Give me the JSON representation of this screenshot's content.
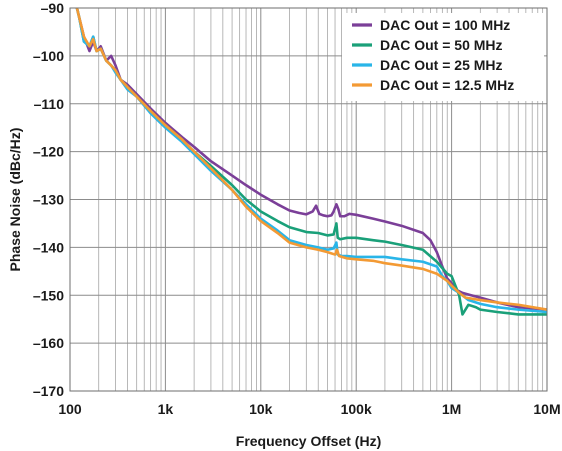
{
  "chart_data": {
    "type": "line",
    "xscale": "log",
    "xlabel": "Frequency Offset (Hz)",
    "ylabel": "Phase Noise (dBc/Hz)",
    "xlim": [
      100,
      10000000
    ],
    "ylim": [
      -170,
      -90
    ],
    "grid": true,
    "legend_position": "top-right",
    "x_tick_values": [
      100,
      1000,
      10000,
      100000,
      1000000,
      10000000
    ],
    "x_tick_labels": [
      "100",
      "1k",
      "10k",
      "100k",
      "1M",
      "10M"
    ],
    "y_tick_values": [
      -90,
      -100,
      -110,
      -120,
      -130,
      -140,
      -150,
      -160,
      -170
    ],
    "y_tick_labels": [
      "–90",
      "–100",
      "–110",
      "–120",
      "–130",
      "–140",
      "–150",
      "–160",
      "–170"
    ],
    "series": [
      {
        "name": "DAC Out = 100 MHz",
        "color": "#7B3F98",
        "points": [
          [
            100,
            -85
          ],
          [
            115,
            -89
          ],
          [
            125,
            -92
          ],
          [
            140,
            -96
          ],
          [
            160,
            -99
          ],
          [
            175,
            -97
          ],
          [
            190,
            -99
          ],
          [
            210,
            -98
          ],
          [
            240,
            -101
          ],
          [
            270,
            -100
          ],
          [
            300,
            -102
          ],
          [
            340,
            -105
          ],
          [
            400,
            -106
          ],
          [
            500,
            -108
          ],
          [
            700,
            -111
          ],
          [
            1000,
            -114
          ],
          [
            1500,
            -117
          ],
          [
            2000,
            -119
          ],
          [
            3000,
            -122
          ],
          [
            5000,
            -125
          ],
          [
            7000,
            -127
          ],
          [
            10000,
            -129
          ],
          [
            15000,
            -131
          ],
          [
            20000,
            -132.3
          ],
          [
            25000,
            -132.8
          ],
          [
            30000,
            -133.1
          ],
          [
            35000,
            -132.5
          ],
          [
            38000,
            -131.3
          ],
          [
            41000,
            -133
          ],
          [
            45000,
            -133.3
          ],
          [
            50000,
            -133.5
          ],
          [
            55000,
            -133.3
          ],
          [
            58000,
            -132.5
          ],
          [
            62000,
            -131
          ],
          [
            65000,
            -132
          ],
          [
            68000,
            -133.5
          ],
          [
            75000,
            -133.5
          ],
          [
            85000,
            -133
          ],
          [
            100000,
            -133.2
          ],
          [
            150000,
            -134
          ],
          [
            200000,
            -134.6
          ],
          [
            300000,
            -135.5
          ],
          [
            500000,
            -137
          ],
          [
            600000,
            -138.5
          ],
          [
            700000,
            -141
          ],
          [
            800000,
            -144
          ],
          [
            900000,
            -146.5
          ],
          [
            1000000,
            -147.5
          ],
          [
            1100000,
            -148.8
          ],
          [
            1300000,
            -149.5
          ],
          [
            1600000,
            -150
          ],
          [
            2000000,
            -150.5
          ],
          [
            3000000,
            -151.5
          ],
          [
            5000000,
            -152.5
          ],
          [
            10000000,
            -153
          ]
        ]
      },
      {
        "name": "DAC Out = 50 MHz",
        "color": "#1AA079",
        "points": [
          [
            100,
            -86
          ],
          [
            115,
            -89
          ],
          [
            125,
            -92
          ],
          [
            140,
            -97
          ],
          [
            160,
            -98
          ],
          [
            175,
            -96
          ],
          [
            190,
            -99
          ],
          [
            210,
            -98.5
          ],
          [
            240,
            -101
          ],
          [
            270,
            -102
          ],
          [
            300,
            -103
          ],
          [
            340,
            -105
          ],
          [
            400,
            -106.5
          ],
          [
            500,
            -108.5
          ],
          [
            700,
            -111.5
          ],
          [
            1000,
            -114.5
          ],
          [
            1500,
            -117.5
          ],
          [
            2000,
            -120
          ],
          [
            3000,
            -123
          ],
          [
            5000,
            -127
          ],
          [
            7000,
            -130
          ],
          [
            10000,
            -132.5
          ],
          [
            15000,
            -134.5
          ],
          [
            20000,
            -135.8
          ],
          [
            30000,
            -136.8
          ],
          [
            40000,
            -137
          ],
          [
            50000,
            -137.5
          ],
          [
            58000,
            -137.3
          ],
          [
            62000,
            -135
          ],
          [
            64000,
            -138
          ],
          [
            68000,
            -138.3
          ],
          [
            80000,
            -138
          ],
          [
            100000,
            -138
          ],
          [
            150000,
            -138.5
          ],
          [
            200000,
            -138.8
          ],
          [
            300000,
            -139.5
          ],
          [
            500000,
            -140.5
          ],
          [
            700000,
            -143
          ],
          [
            900000,
            -145.5
          ],
          [
            1000000,
            -146
          ],
          [
            1200000,
            -150
          ],
          [
            1300000,
            -154
          ],
          [
            1500000,
            -152
          ],
          [
            1800000,
            -152.5
          ],
          [
            2000000,
            -153
          ],
          [
            3000000,
            -153.5
          ],
          [
            5000000,
            -154
          ],
          [
            10000000,
            -154
          ]
        ]
      },
      {
        "name": "DAC Out = 25 MHz",
        "color": "#29B5E8",
        "points": [
          [
            100,
            -86
          ],
          [
            115,
            -89
          ],
          [
            125,
            -92
          ],
          [
            140,
            -97
          ],
          [
            160,
            -98
          ],
          [
            175,
            -96
          ],
          [
            190,
            -99
          ],
          [
            210,
            -98.5
          ],
          [
            240,
            -101
          ],
          [
            270,
            -102
          ],
          [
            300,
            -103.5
          ],
          [
            340,
            -105
          ],
          [
            400,
            -107
          ],
          [
            500,
            -108.5
          ],
          [
            700,
            -112
          ],
          [
            1000,
            -115
          ],
          [
            1500,
            -118
          ],
          [
            2000,
            -120.5
          ],
          [
            3000,
            -124
          ],
          [
            5000,
            -128
          ],
          [
            7000,
            -131
          ],
          [
            10000,
            -134
          ],
          [
            15000,
            -136.5
          ],
          [
            20000,
            -138.5
          ],
          [
            30000,
            -139.5
          ],
          [
            40000,
            -140
          ],
          [
            50000,
            -140.5
          ],
          [
            58000,
            -140.2
          ],
          [
            62000,
            -139
          ],
          [
            64000,
            -141.5
          ],
          [
            70000,
            -141.8
          ],
          [
            80000,
            -141.8
          ],
          [
            100000,
            -142
          ],
          [
            150000,
            -142
          ],
          [
            200000,
            -142
          ],
          [
            300000,
            -142.5
          ],
          [
            500000,
            -143
          ],
          [
            700000,
            -144
          ],
          [
            800000,
            -146
          ],
          [
            900000,
            -147
          ],
          [
            1000000,
            -148.5
          ],
          [
            1200000,
            -149.5
          ],
          [
            1500000,
            -151
          ],
          [
            2000000,
            -151.8
          ],
          [
            3000000,
            -152.5
          ],
          [
            5000000,
            -153
          ],
          [
            10000000,
            -153.5
          ]
        ]
      },
      {
        "name": "DAC Out = 12.5 MHz",
        "color": "#F39A34",
        "points": [
          [
            100,
            -86
          ],
          [
            115,
            -89
          ],
          [
            125,
            -92
          ],
          [
            140,
            -96
          ],
          [
            160,
            -98
          ],
          [
            175,
            -96.5
          ],
          [
            190,
            -99
          ],
          [
            210,
            -98.5
          ],
          [
            240,
            -101
          ],
          [
            270,
            -102
          ],
          [
            300,
            -103
          ],
          [
            340,
            -105
          ],
          [
            400,
            -106.5
          ],
          [
            500,
            -108.5
          ],
          [
            700,
            -111.5
          ],
          [
            1000,
            -114.5
          ],
          [
            1500,
            -117.5
          ],
          [
            2000,
            -120
          ],
          [
            3000,
            -123.5
          ],
          [
            5000,
            -128
          ],
          [
            7000,
            -131.5
          ],
          [
            10000,
            -134.5
          ],
          [
            15000,
            -137
          ],
          [
            20000,
            -139
          ],
          [
            30000,
            -140
          ],
          [
            40000,
            -140.5
          ],
          [
            50000,
            -141
          ],
          [
            60000,
            -141.5
          ],
          [
            63000,
            -140.5
          ],
          [
            66000,
            -141.8
          ],
          [
            80000,
            -142.3
          ],
          [
            100000,
            -142.5
          ],
          [
            150000,
            -142.8
          ],
          [
            200000,
            -143.3
          ],
          [
            300000,
            -143.8
          ],
          [
            500000,
            -144.5
          ],
          [
            700000,
            -145.5
          ],
          [
            900000,
            -147
          ],
          [
            1000000,
            -148
          ],
          [
            1200000,
            -149.5
          ],
          [
            1400000,
            -150.5
          ],
          [
            2000000,
            -151
          ],
          [
            3000000,
            -151.5
          ],
          [
            5000000,
            -152
          ],
          [
            10000000,
            -153
          ]
        ]
      }
    ]
  }
}
